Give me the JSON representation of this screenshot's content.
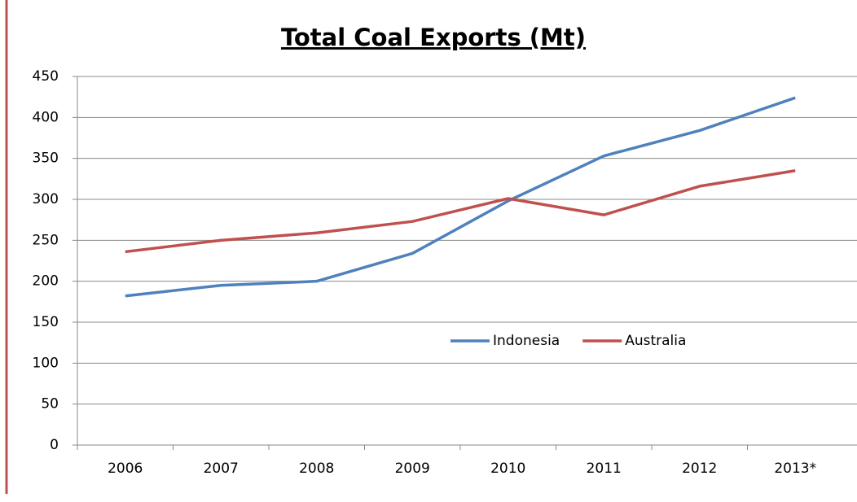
{
  "chart_data": {
    "type": "line",
    "title": "Total Coal Exports (Mt)",
    "categories": [
      "2006",
      "2007",
      "2008",
      "2009",
      "2010",
      "2011",
      "2012",
      "2013*"
    ],
    "series": [
      {
        "name": "Indonesia",
        "color": "#4f81bd",
        "values": [
          182,
          195,
          200,
          234,
          298,
          353,
          384,
          424
        ]
      },
      {
        "name": "Australia",
        "color": "#c0504d",
        "values": [
          236,
          250,
          259,
          273,
          301,
          281,
          316,
          335
        ]
      }
    ],
    "ylim": [
      0,
      450
    ],
    "yticks": [
      0,
      50,
      100,
      150,
      200,
      250,
      300,
      350,
      400,
      450
    ],
    "grid": true
  }
}
